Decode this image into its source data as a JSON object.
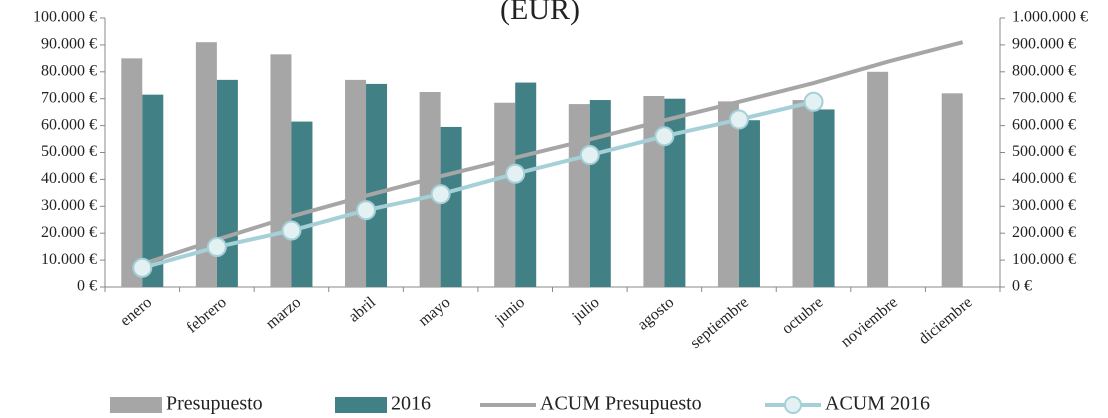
{
  "chart_data": {
    "type": "bar-line",
    "title": "(EUR)",
    "categories": [
      "enero",
      "febrero",
      "marzo",
      "abril",
      "mayo",
      "junio",
      "julio",
      "agosto",
      "septiembre",
      "octubre",
      "noviembre",
      "diciembre"
    ],
    "series": [
      {
        "name": "Presupuesto",
        "type": "bar",
        "color": "#a6a6a6",
        "values": [
          85000,
          91000,
          86500,
          77000,
          72500,
          68500,
          68000,
          71000,
          69000,
          69500,
          80000,
          72000
        ]
      },
      {
        "name": "2016",
        "type": "bar",
        "color": "#418085",
        "values": [
          71500,
          77000,
          61500,
          75500,
          59500,
          76000,
          69500,
          70000,
          62000,
          66000,
          null,
          null
        ]
      },
      {
        "name": "ACUM Presupuesto",
        "type": "line",
        "axis": "y2",
        "color": "#a6a6a6",
        "values": [
          85000,
          176000,
          262500,
          339500,
          412000,
          480500,
          548500,
          619500,
          688500,
          758000,
          838000,
          910000
        ]
      },
      {
        "name": "ACUM 2016",
        "type": "line",
        "axis": "y2",
        "color": "#a5d0d8",
        "marker": true,
        "values": [
          71500,
          148500,
          210000,
          285500,
          345000,
          421000,
          490500,
          560500,
          622500,
          688500,
          null,
          null
        ]
      }
    ],
    "ylim": [
      0,
      100000
    ],
    "yticks": [
      {
        "value": 0,
        "label": "0 €"
      },
      {
        "value": 10000,
        "label": "10.000 €"
      },
      {
        "value": 20000,
        "label": "20.000 €"
      },
      {
        "value": 30000,
        "label": "30.000 €"
      },
      {
        "value": 40000,
        "label": "40.000 €"
      },
      {
        "value": 50000,
        "label": "50.000 €"
      },
      {
        "value": 60000,
        "label": "60.000 €"
      },
      {
        "value": 70000,
        "label": "70.000 €"
      },
      {
        "value": 80000,
        "label": "80.000 €"
      },
      {
        "value": 90000,
        "label": "90.000 €"
      },
      {
        "value": 100000,
        "label": "100.000 €"
      }
    ],
    "y2lim": [
      0,
      1000000
    ],
    "y2ticks": [
      {
        "value": 0,
        "label": "0 €"
      },
      {
        "value": 100000,
        "label": "100.000 €"
      },
      {
        "value": 200000,
        "label": "200.000 €"
      },
      {
        "value": 300000,
        "label": "300.000 €"
      },
      {
        "value": 400000,
        "label": "400.000 €"
      },
      {
        "value": 500000,
        "label": "500.000 €"
      },
      {
        "value": 600000,
        "label": "600.000 €"
      },
      {
        "value": 700000,
        "label": "700.000 €"
      },
      {
        "value": 800000,
        "label": "800.000 €"
      },
      {
        "value": 900000,
        "label": "900.000 €"
      },
      {
        "value": 1000000,
        "label": "1.000.000 €"
      }
    ],
    "legend": "bottom"
  }
}
